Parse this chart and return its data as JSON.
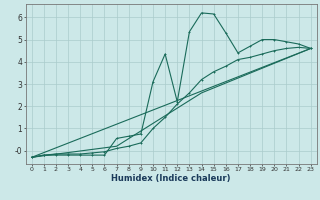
{
  "xlabel": "Humidex (Indice chaleur)",
  "bg_color": "#cce8e8",
  "grid_color": "#aacccc",
  "line_color": "#1a6b5a",
  "xlim": [
    -0.5,
    23.5
  ],
  "ylim": [
    -0.6,
    6.6
  ],
  "xticks": [
    0,
    1,
    2,
    3,
    4,
    5,
    6,
    7,
    8,
    9,
    10,
    11,
    12,
    13,
    14,
    15,
    16,
    17,
    18,
    19,
    20,
    21,
    22,
    23
  ],
  "yticks": [
    0,
    1,
    2,
    3,
    4,
    5,
    6
  ],
  "ytick_labels": [
    "-0",
    "1",
    "2",
    "3",
    "4",
    "5",
    "6"
  ],
  "curve1_x": [
    0,
    1,
    2,
    3,
    4,
    5,
    6,
    7,
    8,
    9,
    10,
    11,
    12,
    13,
    14,
    15,
    16,
    17,
    18,
    19,
    20,
    21,
    22,
    23
  ],
  "curve1_y": [
    -0.3,
    -0.2,
    -0.2,
    -0.2,
    -0.2,
    -0.2,
    -0.2,
    0.55,
    0.65,
    0.75,
    3.1,
    4.35,
    2.2,
    5.35,
    6.2,
    6.15,
    5.3,
    4.4,
    4.7,
    5.0,
    5.0,
    4.9,
    4.8,
    4.6
  ],
  "curve2_x": [
    0,
    1,
    2,
    3,
    4,
    5,
    6,
    7,
    8,
    9,
    10,
    11,
    12,
    13,
    14,
    15,
    16,
    17,
    18,
    19,
    20,
    21,
    22,
    23
  ],
  "curve2_y": [
    -0.3,
    -0.2,
    -0.15,
    -0.15,
    -0.15,
    -0.1,
    -0.05,
    0.1,
    0.2,
    0.35,
    1.0,
    1.5,
    2.1,
    2.6,
    3.2,
    3.55,
    3.8,
    4.1,
    4.2,
    4.35,
    4.5,
    4.6,
    4.65,
    4.6
  ],
  "curve3_x": [
    0,
    23
  ],
  "curve3_y": [
    -0.3,
    4.6
  ],
  "curve4_x": [
    0,
    7,
    14,
    23
  ],
  "curve4_y": [
    -0.3,
    0.2,
    2.6,
    4.6
  ]
}
